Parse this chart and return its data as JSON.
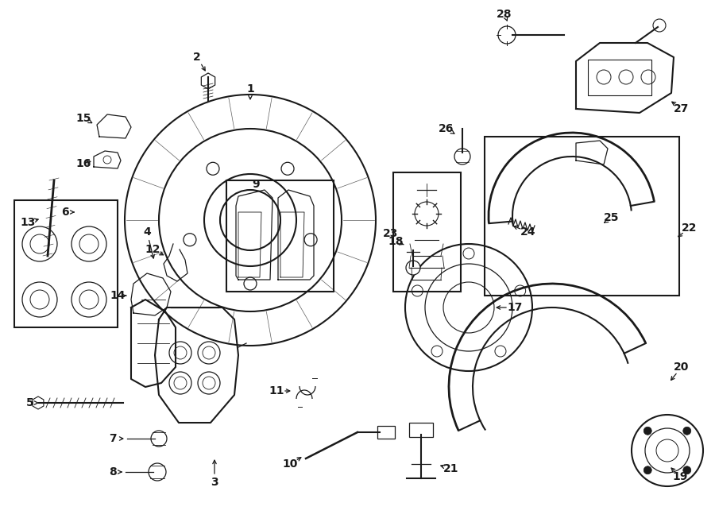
{
  "bg_color": "#ffffff",
  "line_color": "#1a1a1a",
  "fig_width": 9.0,
  "fig_height": 6.62,
  "dpi": 100
}
